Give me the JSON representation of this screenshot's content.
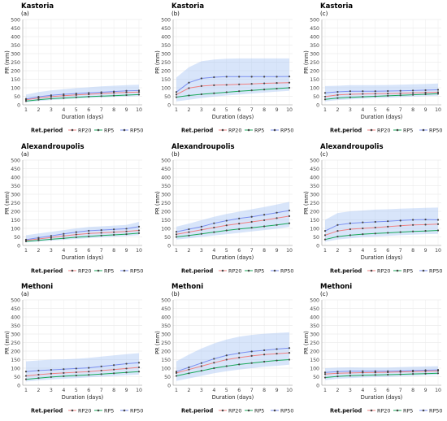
{
  "charts": {
    "legend_title": "Ret.period",
    "xlabel": "Duration (days)",
    "ylabel": "PR (mm)",
    "series_names": [
      "RP20",
      "RP5",
      "RP50"
    ],
    "series_colors": {
      "RP20": "#f08080",
      "RP5": "#1aa85a",
      "RP50": "#7b8ff0"
    },
    "band_color": "#a9c6f5"
  },
  "chart_data": [
    {
      "type": "line",
      "title": "Kastoria",
      "subtitle": "(a)",
      "x": [
        1,
        2,
        3,
        4,
        5,
        6,
        7,
        8,
        9,
        10
      ],
      "xlabel": "Duration (days)",
      "ylabel": "PR (mm)",
      "ylim": [
        0,
        500
      ],
      "yticks": [
        0,
        50,
        100,
        150,
        200,
        250,
        300,
        350,
        400,
        450,
        500
      ],
      "grid": true,
      "legend_position": "bottom",
      "series": [
        {
          "name": "RP20",
          "values": [
            30,
            40,
            48,
            54,
            58,
            62,
            66,
            70,
            73,
            75
          ]
        },
        {
          "name": "RP5",
          "values": [
            22,
            30,
            36,
            40,
            44,
            48,
            51,
            54,
            57,
            60
          ]
        },
        {
          "name": "RP50",
          "values": [
            35,
            47,
            56,
            62,
            66,
            70,
            74,
            78,
            82,
            84
          ]
        }
      ],
      "band": {
        "lower": [
          15,
          22,
          28,
          32,
          36,
          40,
          43,
          46,
          49,
          52
        ],
        "upper": [
          60,
          75,
          85,
          92,
          98,
          103,
          108,
          112,
          115,
          118
        ]
      }
    },
    {
      "type": "line",
      "title": "Kastoria",
      "subtitle": "(b)",
      "x": [
        1,
        2,
        3,
        4,
        5,
        6,
        7,
        8,
        9,
        10
      ],
      "xlabel": "Duration (days)",
      "ylabel": "PR (mm)",
      "ylim": [
        0,
        500
      ],
      "yticks": [
        0,
        50,
        100,
        150,
        200,
        250,
        300,
        350,
        400,
        450,
        500
      ],
      "grid": true,
      "legend_position": "bottom",
      "series": [
        {
          "name": "RP20",
          "values": [
            60,
            98,
            110,
            115,
            117,
            120,
            123,
            126,
            128,
            130
          ]
        },
        {
          "name": "RP5",
          "values": [
            45,
            55,
            62,
            68,
            74,
            80,
            85,
            90,
            95,
            100
          ]
        },
        {
          "name": "RP50",
          "values": [
            75,
            130,
            155,
            162,
            165,
            165,
            165,
            165,
            165,
            166
          ]
        }
      ],
      "band": {
        "lower": [
          20,
          30,
          40,
          48,
          55,
          60,
          66,
          72,
          77,
          82
        ],
        "upper": [
          160,
          220,
          255,
          265,
          270,
          272,
          272,
          272,
          272,
          272
        ]
      }
    },
    {
      "type": "line",
      "title": "Kastoria",
      "subtitle": "(c)",
      "x": [
        1,
        2,
        3,
        4,
        5,
        6,
        7,
        8,
        9,
        10
      ],
      "xlabel": "Duration (days)",
      "ylabel": "PR (mm)",
      "ylim": [
        0,
        500
      ],
      "yticks": [
        0,
        50,
        100,
        150,
        200,
        250,
        300,
        350,
        400,
        450,
        500
      ],
      "grid": true,
      "legend_position": "bottom",
      "series": [
        {
          "name": "RP20",
          "values": [
            48,
            58,
            62,
            64,
            65,
            66,
            68,
            70,
            72,
            74
          ]
        },
        {
          "name": "RP5",
          "values": [
            32,
            40,
            44,
            47,
            50,
            53,
            56,
            59,
            62,
            65
          ]
        },
        {
          "name": "RP50",
          "values": [
            70,
            76,
            80,
            80,
            80,
            81,
            82,
            84,
            86,
            88
          ]
        }
      ],
      "band": {
        "lower": [
          20,
          28,
          32,
          36,
          39,
          42,
          45,
          48,
          51,
          54
        ],
        "upper": [
          110,
          112,
          115,
          115,
          115,
          116,
          118,
          120,
          122,
          125
        ]
      }
    },
    {
      "type": "line",
      "title": "Alexandroupolis",
      "subtitle": "(a)",
      "x": [
        1,
        2,
        3,
        4,
        5,
        6,
        7,
        8,
        9,
        10
      ],
      "xlabel": "Duration (days)",
      "ylabel": "PR (mm)",
      "ylim": [
        0,
        500
      ],
      "yticks": [
        0,
        50,
        100,
        150,
        200,
        250,
        300,
        350,
        400,
        450,
        500
      ],
      "grid": true,
      "legend_position": "bottom",
      "series": [
        {
          "name": "RP20",
          "values": [
            30,
            38,
            46,
            56,
            64,
            70,
            74,
            78,
            82,
            88
          ]
        },
        {
          "name": "RP5",
          "values": [
            24,
            30,
            36,
            42,
            48,
            53,
            58,
            62,
            66,
            72
          ]
        },
        {
          "name": "RP50",
          "values": [
            34,
            45,
            56,
            68,
            78,
            86,
            90,
            94,
            98,
            110
          ]
        }
      ],
      "band": {
        "lower": [
          18,
          23,
          28,
          33,
          38,
          43,
          47,
          51,
          55,
          60
        ],
        "upper": [
          60,
          70,
          80,
          90,
          100,
          108,
          112,
          116,
          120,
          138
        ]
      }
    },
    {
      "type": "line",
      "title": "Alexandroupolis",
      "subtitle": "(b)",
      "x": [
        1,
        2,
        3,
        4,
        5,
        6,
        7,
        8,
        9,
        10
      ],
      "xlabel": "Duration (days)",
      "ylabel": "PR (mm)",
      "ylim": [
        0,
        500
      ],
      "yticks": [
        0,
        50,
        100,
        150,
        200,
        250,
        300,
        350,
        400,
        450,
        500
      ],
      "grid": true,
      "legend_position": "bottom",
      "series": [
        {
          "name": "RP20",
          "values": [
            65,
            78,
            92,
            105,
            118,
            128,
            138,
            148,
            160,
            172
          ]
        },
        {
          "name": "RP5",
          "values": [
            50,
            58,
            68,
            78,
            88,
            96,
            104,
            112,
            120,
            130
          ]
        },
        {
          "name": "RP50",
          "values": [
            80,
            95,
            110,
            130,
            145,
            158,
            168,
            180,
            192,
            205
          ]
        }
      ],
      "band": {
        "lower": [
          35,
          42,
          50,
          58,
          66,
          74,
          82,
          90,
          98,
          108
        ],
        "upper": [
          110,
          128,
          148,
          168,
          185,
          198,
          212,
          225,
          240,
          255
        ]
      }
    },
    {
      "type": "line",
      "title": "Alexandroupolis",
      "subtitle": "(c)",
      "x": [
        1,
        2,
        3,
        4,
        5,
        6,
        7,
        8,
        9,
        10
      ],
      "xlabel": "Duration (days)",
      "ylabel": "PR (mm)",
      "ylim": [
        0,
        500
      ],
      "yticks": [
        0,
        50,
        100,
        150,
        200,
        250,
        300,
        350,
        400,
        450,
        500
      ],
      "grid": true,
      "legend_position": "bottom",
      "series": [
        {
          "name": "RP20",
          "values": [
            60,
            85,
            95,
            100,
            105,
            110,
            115,
            120,
            122,
            125
          ]
        },
        {
          "name": "RP5",
          "values": [
            35,
            52,
            60,
            66,
            70,
            74,
            78,
            82,
            85,
            88
          ]
        },
        {
          "name": "RP50",
          "values": [
            85,
            120,
            130,
            135,
            138,
            142,
            146,
            150,
            152,
            150
          ]
        }
      ],
      "band": {
        "lower": [
          22,
          35,
          42,
          48,
          52,
          56,
          60,
          63,
          66,
          68
        ],
        "upper": [
          150,
          190,
          200,
          205,
          210,
          212,
          215,
          218,
          220,
          222
        ]
      }
    },
    {
      "type": "line",
      "title": "Methoni",
      "subtitle": "(a)",
      "x": [
        1,
        2,
        3,
        4,
        5,
        6,
        7,
        8,
        9,
        10
      ],
      "xlabel": "Duration (days)",
      "ylabel": "PR (mm)",
      "ylim": [
        0,
        500
      ],
      "yticks": [
        0,
        50,
        100,
        150,
        200,
        250,
        300,
        350,
        400,
        450,
        500
      ],
      "grid": true,
      "legend_position": "bottom",
      "series": [
        {
          "name": "RP20",
          "values": [
            55,
            62,
            68,
            72,
            76,
            80,
            86,
            92,
            98,
            105
          ]
        },
        {
          "name": "RP5",
          "values": [
            35,
            42,
            48,
            53,
            57,
            61,
            65,
            70,
            75,
            80
          ]
        },
        {
          "name": "RP50",
          "values": [
            80,
            86,
            90,
            94,
            98,
            102,
            110,
            118,
            126,
            132
          ]
        }
      ],
      "band": {
        "lower": [
          22,
          28,
          34,
          38,
          42,
          46,
          50,
          54,
          58,
          62
        ],
        "upper": [
          140,
          145,
          150,
          152,
          155,
          160,
          168,
          175,
          182,
          188
        ]
      }
    },
    {
      "type": "line",
      "title": "Methoni",
      "subtitle": "(b)",
      "x": [
        1,
        2,
        3,
        4,
        5,
        6,
        7,
        8,
        9,
        10
      ],
      "xlabel": "Duration (days)",
      "ylabel": "PR (mm)",
      "ylim": [
        0,
        500
      ],
      "yticks": [
        0,
        50,
        100,
        150,
        200,
        250,
        300,
        350,
        400,
        450,
        500
      ],
      "grid": true,
      "legend_position": "bottom",
      "series": [
        {
          "name": "RP20",
          "values": [
            72,
            92,
            112,
            132,
            150,
            162,
            172,
            180,
            185,
            190
          ]
        },
        {
          "name": "RP5",
          "values": [
            55,
            70,
            85,
            100,
            112,
            122,
            130,
            138,
            145,
            150
          ]
        },
        {
          "name": "RP50",
          "values": [
            80,
            105,
            130,
            155,
            175,
            188,
            198,
            205,
            212,
            218
          ]
        }
      ],
      "band": {
        "lower": [
          25,
          40,
          55,
          70,
          82,
          92,
          100,
          108,
          114,
          120
        ],
        "upper": [
          140,
          180,
          215,
          245,
          268,
          285,
          295,
          302,
          306,
          310
        ]
      }
    },
    {
      "type": "line",
      "title": "Methoni",
      "subtitle": "(c)",
      "x": [
        1,
        2,
        3,
        4,
        5,
        6,
        7,
        8,
        9,
        10
      ],
      "xlabel": "Duration (days)",
      "ylabel": "PR (mm)",
      "ylim": [
        0,
        500
      ],
      "yticks": [
        0,
        50,
        100,
        150,
        200,
        250,
        300,
        350,
        400,
        450,
        500
      ],
      "grid": true,
      "legend_position": "bottom",
      "series": [
        {
          "name": "RP20",
          "values": [
            65,
            70,
            72,
            74,
            75,
            76,
            78,
            80,
            82,
            84
          ]
        },
        {
          "name": "RP5",
          "values": [
            45,
            52,
            56,
            58,
            60,
            62,
            64,
            66,
            68,
            70
          ]
        },
        {
          "name": "RP50",
          "values": [
            75,
            80,
            82,
            82,
            82,
            82,
            84,
            86,
            88,
            90
          ]
        }
      ],
      "band": {
        "lower": [
          30,
          38,
          42,
          45,
          47,
          49,
          52,
          55,
          58,
          60
        ],
        "upper": [
          100,
          104,
          105,
          104,
          104,
          104,
          106,
          108,
          110,
          112
        ]
      }
    }
  ]
}
